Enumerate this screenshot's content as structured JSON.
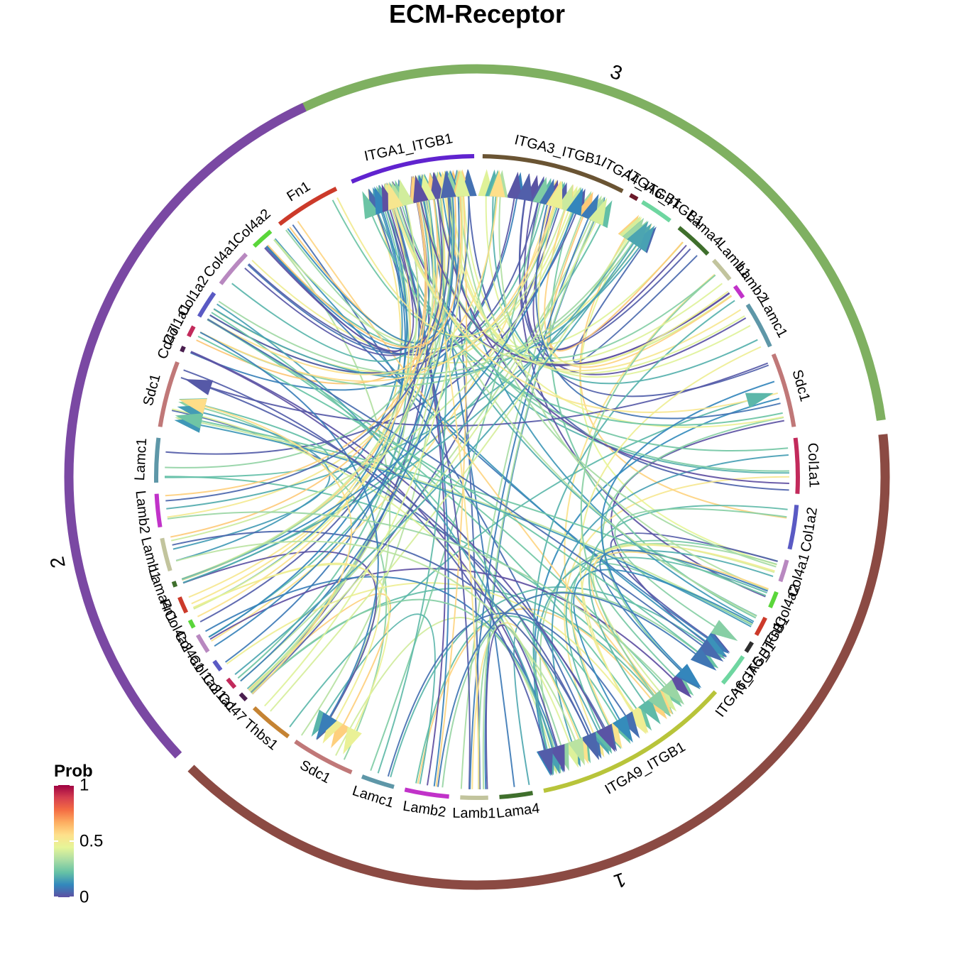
{
  "title": "ECM-Receptor",
  "legend": {
    "title": "Prob",
    "ticks": [
      "1",
      "0.5",
      "0"
    ],
    "stops": [
      "#5e4fa2",
      "#3288bd",
      "#66c2a5",
      "#abdda4",
      "#e6f598",
      "#fee08b",
      "#fdae61",
      "#f46d43",
      "#d53e4f",
      "#9e0142"
    ]
  },
  "groups": [
    {
      "label": "3",
      "color": "#7fb061"
    },
    {
      "label": "1",
      "color": "#8b4a43"
    },
    {
      "label": "2",
      "color": "#7a48a3"
    }
  ],
  "sectors": [
    {
      "label": "ITGA1_ITGB1",
      "group": 0,
      "color": "#6023cf"
    },
    {
      "label": "ITGA3_ITGB1",
      "group": 0,
      "color": "#6a5433"
    },
    {
      "label": "ITGA4_ITGB1",
      "group": 0,
      "color": "#6b1a2a"
    },
    {
      "label": "ITGA6_ITGB1",
      "group": 0,
      "color": "#6ed6a0"
    },
    {
      "label": "Lama4",
      "group": 0,
      "color": "#3f6f2c"
    },
    {
      "label": "Lamb1",
      "group": 0,
      "color": "#c2c49d"
    },
    {
      "label": "Lamb2",
      "group": 0,
      "color": "#c132c9"
    },
    {
      "label": "Lamc1",
      "group": 0,
      "color": "#5e97a8"
    },
    {
      "label": "Sdc1",
      "group": 0,
      "color": "#c07878"
    },
    {
      "label": "Col1a1",
      "group": 1,
      "color": "#c22a5b"
    },
    {
      "label": "Col1a2",
      "group": 1,
      "color": "#5a5ac4"
    },
    {
      "label": "Col4a1",
      "group": 1,
      "color": "#b888c0"
    },
    {
      "label": "Col4a2",
      "group": 1,
      "color": "#5ad63a"
    },
    {
      "label": "Fn1",
      "group": 1,
      "color": "#cc3a2a"
    },
    {
      "label": "ITGA5_ITGB1",
      "group": 1,
      "color": "#2e2e2e"
    },
    {
      "label": "ITGA6_ITGB1",
      "group": 1,
      "color": "#6ed6a0"
    },
    {
      "label": "ITGA9_ITGB1",
      "group": 1,
      "color": "#b8c43a"
    },
    {
      "label": "Lama4",
      "group": 1,
      "color": "#3f6f2c"
    },
    {
      "label": "Lamb1",
      "group": 1,
      "color": "#c2c49d"
    },
    {
      "label": "Lamb2",
      "group": 1,
      "color": "#c132c9"
    },
    {
      "label": "Lamc1",
      "group": 1,
      "color": "#5e97a8"
    },
    {
      "label": "Sdc1",
      "group": 1,
      "color": "#c07878"
    },
    {
      "label": "Thbs1",
      "group": 1,
      "color": "#c58333"
    },
    {
      "label": "Cd47",
      "group": 2,
      "color": "#4a1f4f"
    },
    {
      "label": "Col1a1",
      "group": 2,
      "color": "#c22a5b"
    },
    {
      "label": "Col1a2",
      "group": 2,
      "color": "#5a5ac4"
    },
    {
      "label": "Col4a1",
      "group": 2,
      "color": "#b888c0"
    },
    {
      "label": "Col4a2",
      "group": 2,
      "color": "#5ad63a"
    },
    {
      "label": "Fn1",
      "group": 2,
      "color": "#cc3a2a"
    },
    {
      "label": "Lama4",
      "group": 2,
      "color": "#3f6f2c"
    },
    {
      "label": "Lamb1",
      "group": 2,
      "color": "#c2c49d"
    },
    {
      "label": "Lamb2",
      "group": 2,
      "color": "#c132c9"
    },
    {
      "label": "Lamc1",
      "group": 2,
      "color": "#5e97a8"
    },
    {
      "label": "Sdc1",
      "group": 2,
      "color": "#c07878"
    },
    {
      "label": "Cd47",
      "group": 2,
      "color": "#4a1f4f"
    },
    {
      "label": "Col1a1",
      "group": 2,
      "color": "#c22a5b"
    },
    {
      "label": "Col1a2",
      "group": 2,
      "color": "#5a5ac4"
    },
    {
      "label": "Col4a1",
      "group": 2,
      "color": "#b888c0"
    },
    {
      "label": "Col4a2",
      "group": 2,
      "color": "#5ad63a"
    },
    {
      "label": "Fn1",
      "group": 2,
      "color": "#cc3a2a"
    }
  ]
}
